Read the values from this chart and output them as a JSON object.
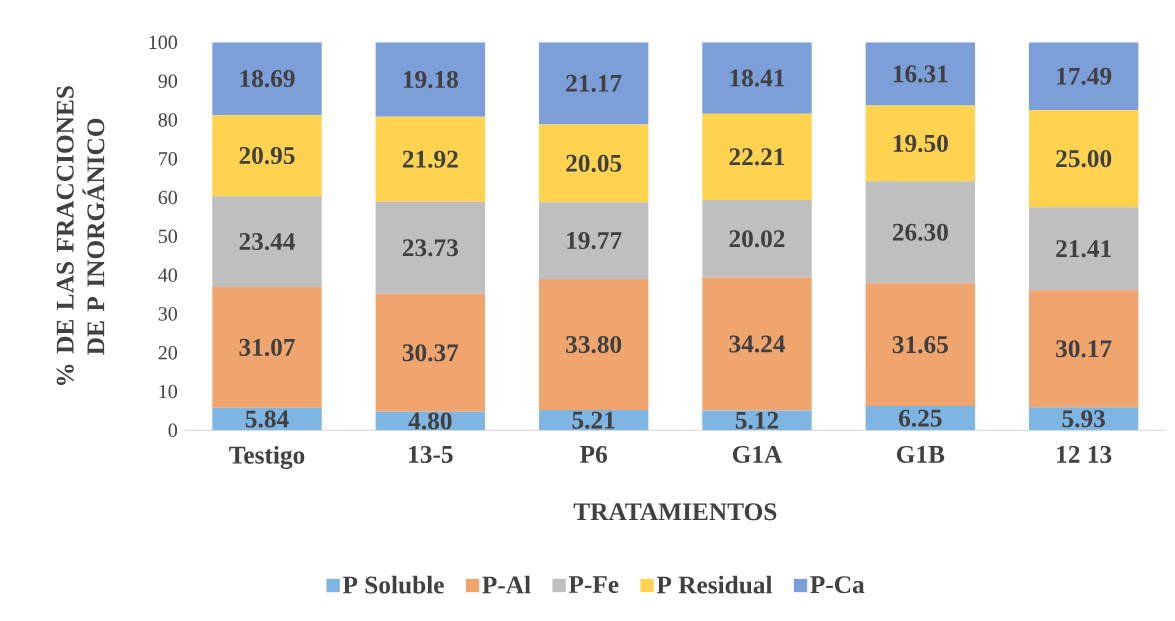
{
  "chart_data": {
    "type": "bar",
    "stacked": true,
    "xlabel": "TRATAMIENTOS",
    "ylabel": "% DE LAS FRACCIONES DE P INORGÁNICO",
    "categories": [
      "Testigo",
      "13-5",
      "P6",
      "G1A",
      "G1B",
      "12 13"
    ],
    "ylim": [
      0,
      100
    ],
    "yticks": [
      0,
      10,
      20,
      30,
      40,
      50,
      60,
      70,
      80,
      90,
      100
    ],
    "legend": "bottom",
    "series": [
      {
        "name": "P Soluble",
        "color": "#7fb5e3",
        "values": [
          5.84,
          4.8,
          5.21,
          5.12,
          6.25,
          5.93
        ],
        "value_labels": [
          "5.84",
          "4.80",
          "5.21",
          "5.12",
          "6.25",
          "5.93"
        ]
      },
      {
        "name": "P-Al",
        "color": "#f0a56e",
        "values": [
          31.07,
          30.37,
          33.8,
          34.24,
          31.65,
          30.17
        ],
        "value_labels": [
          "31.07",
          "30.37",
          "33.80",
          "34.24",
          "31.65",
          "30.17"
        ]
      },
      {
        "name": "P-Fe",
        "color": "#bfbfbf",
        "values": [
          23.44,
          23.73,
          19.77,
          20.02,
          26.3,
          21.41
        ],
        "value_labels": [
          "23.44",
          "23.73",
          "19.77",
          "20.02",
          "26.30",
          "21.41"
        ]
      },
      {
        "name": "P Residual",
        "color": "#ffd350",
        "values": [
          20.95,
          21.92,
          20.05,
          22.21,
          19.5,
          25.0
        ],
        "value_labels": [
          "20.95",
          "21.92",
          "20.05",
          "22.21",
          "19.50",
          "25.00"
        ]
      },
      {
        "name": "P-Ca",
        "color": "#7d9fd9",
        "values": [
          18.69,
          19.18,
          21.17,
          18.41,
          16.31,
          17.49
        ],
        "value_labels": [
          "18.69",
          "19.18",
          "21.17",
          "18.41",
          "16.31",
          "17.49"
        ]
      }
    ]
  }
}
